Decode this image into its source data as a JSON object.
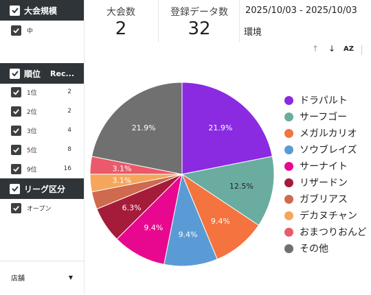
{
  "filters": {
    "size": {
      "header": "大会規模",
      "items": [
        {
          "label": "中"
        }
      ]
    },
    "rank": {
      "header": "順位",
      "header_col2": "Rec...",
      "items": [
        {
          "label": "1位",
          "count": "2"
        },
        {
          "label": "2位",
          "count": "2"
        },
        {
          "label": "3位",
          "count": "4"
        },
        {
          "label": "5位",
          "count": "8"
        },
        {
          "label": "9位",
          "count": "16"
        }
      ]
    },
    "league": {
      "header": "リーグ区分",
      "items": [
        {
          "label": "オープン"
        }
      ]
    },
    "store": {
      "label": "店舗"
    }
  },
  "scorecards": [
    {
      "title": "大会数",
      "value": "2"
    },
    {
      "title": "登録データ数",
      "value": "32"
    }
  ],
  "date_range": "2025/10/03 - 2025/10/03",
  "environment_label": "環境",
  "chart_data": {
    "type": "pie",
    "slices": [
      {
        "name": "ドラパルト",
        "value": 21.9,
        "label": "21.9%",
        "color": "#8a2be2"
      },
      {
        "name": "サーフゴー",
        "value": 12.5,
        "label": "12.5%",
        "color": "#6aada0"
      },
      {
        "name": "メガルカリオ",
        "value": 9.4,
        "label": "9.4%",
        "color": "#f4733f"
      },
      {
        "name": "ソウブレイズ",
        "value": 9.4,
        "label": "9.4%",
        "color": "#5b9bd5"
      },
      {
        "name": "サーナイト",
        "value": 9.4,
        "label": "9.4%",
        "color": "#e8088f"
      },
      {
        "name": "リザードン",
        "value": 6.3,
        "label": "6.3%",
        "color": "#a51c3b"
      },
      {
        "name": "ガブリアス",
        "value": 3.1,
        "label": "",
        "color": "#cf6a4e"
      },
      {
        "name": "デカヌチャン",
        "value": 3.1,
        "label": "3.1%",
        "color": "#f5a65b"
      },
      {
        "name": "おまつりおんど",
        "value": 3.1,
        "label": "3.1%",
        "color": "#ea5a6a"
      },
      {
        "name": "その他",
        "value": 21.9,
        "label": "21.9%",
        "color": "#707070"
      }
    ],
    "legend_position": "right"
  }
}
